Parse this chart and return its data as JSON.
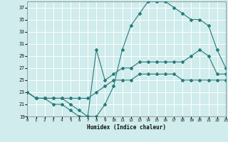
{
  "line1_x": [
    0,
    1,
    2,
    3,
    4,
    5,
    6,
    7,
    8,
    9,
    10,
    11,
    12,
    13,
    14,
    15,
    16,
    17,
    18,
    19,
    20,
    21,
    22,
    23
  ],
  "line1_y": [
    23,
    22,
    22,
    22,
    22,
    22,
    22,
    22,
    23,
    24,
    25,
    25,
    25,
    26,
    26,
    26,
    26,
    26,
    25,
    25,
    25,
    25,
    25,
    25
  ],
  "line2_x": [
    0,
    1,
    2,
    3,
    4,
    5,
    6,
    7,
    8,
    9,
    10,
    11,
    12,
    13,
    14,
    15,
    16,
    17,
    18,
    19,
    20,
    21,
    22,
    23
  ],
  "line2_y": [
    23,
    22,
    22,
    21,
    21,
    20,
    19,
    19,
    30,
    25,
    26,
    27,
    27,
    28,
    28,
    28,
    28,
    28,
    28,
    29,
    30,
    29,
    26,
    26
  ],
  "line3_x": [
    0,
    1,
    2,
    3,
    4,
    5,
    6,
    7,
    8,
    9,
    10,
    11,
    12,
    13,
    14,
    15,
    16,
    17,
    18,
    19,
    20,
    21,
    22,
    23
  ],
  "line3_y": [
    23,
    22,
    22,
    22,
    22,
    21,
    20,
    19,
    19,
    21,
    24,
    30,
    34,
    36,
    38,
    38,
    38,
    37,
    36,
    35,
    35,
    34,
    30,
    27
  ],
  "xlabel": "Humidex (Indice chaleur)",
  "xlim": [
    0,
    23
  ],
  "ylim": [
    19,
    38
  ],
  "yticks": [
    19,
    21,
    23,
    25,
    27,
    29,
    31,
    33,
    35,
    37
  ],
  "xticks": [
    0,
    1,
    2,
    3,
    4,
    5,
    6,
    7,
    8,
    9,
    10,
    11,
    12,
    13,
    14,
    15,
    16,
    17,
    18,
    19,
    20,
    21,
    22,
    23
  ],
  "line_color": "#2a7a7a",
  "bg_color": "#d0ecec",
  "grid_color": "#ffffff",
  "markersize": 2.0,
  "linewidth": 0.8
}
